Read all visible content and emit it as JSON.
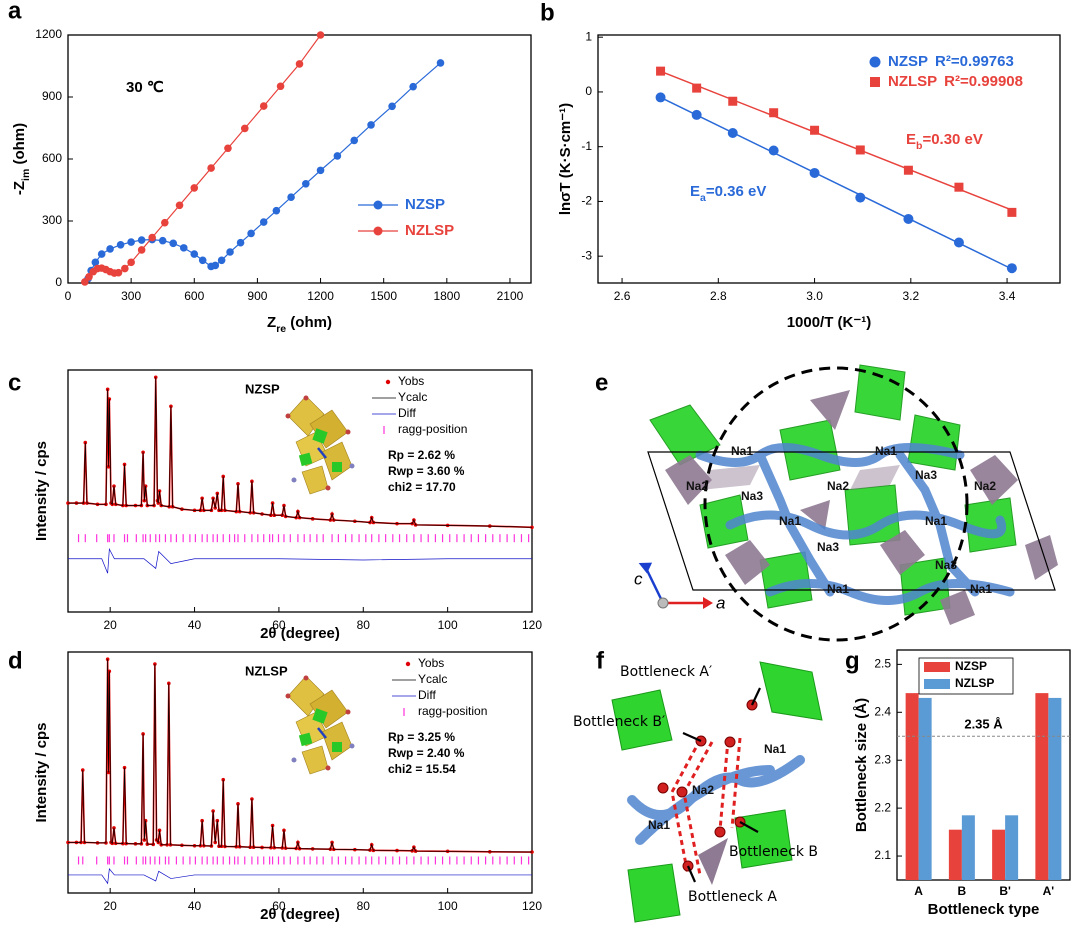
{
  "chart_data": [
    {
      "panel": "a",
      "type": "line",
      "xlabel_parts": [
        "Z",
        "re",
        " (ohm)"
      ],
      "ylabel_parts": [
        "-Z",
        "im",
        " (ohm)"
      ],
      "annotation": "30 ℃",
      "xlim": [
        0,
        2200
      ],
      "xticks": [
        0,
        300,
        600,
        900,
        1200,
        1500,
        1800,
        2100
      ],
      "ylim": [
        0,
        1200
      ],
      "yticks": [
        0,
        300,
        600,
        900,
        1200
      ],
      "series": [
        {
          "name": "NZSP",
          "color": "#2a6ad8",
          "x": [
            95,
            110,
            130,
            160,
            200,
            250,
            300,
            350,
            400,
            450,
            500,
            550,
            600,
            640,
            680,
            700,
            730,
            770,
            820,
            870,
            930,
            990,
            1060,
            1130,
            1200,
            1280,
            1360,
            1440,
            1540,
            1640,
            1770
          ],
          "values": [
            20,
            60,
            100,
            140,
            165,
            185,
            198,
            208,
            210,
            205,
            192,
            170,
            140,
            110,
            80,
            85,
            110,
            150,
            195,
            240,
            295,
            350,
            415,
            480,
            545,
            615,
            690,
            765,
            855,
            950,
            1065
          ]
        },
        {
          "name": "NZLSP",
          "color": "#e8423c",
          "x": [
            80,
            100,
            120,
            140,
            160,
            180,
            200,
            220,
            240,
            270,
            300,
            350,
            400,
            460,
            530,
            600,
            680,
            760,
            840,
            930,
            1010,
            1100,
            1200
          ],
          "values": [
            5,
            30,
            55,
            70,
            72,
            65,
            55,
            48,
            50,
            70,
            100,
            160,
            220,
            292,
            376,
            460,
            556,
            652,
            748,
            856,
            952,
            1060,
            1200
          ]
        }
      ]
    },
    {
      "panel": "b",
      "type": "scatter",
      "xlabel": "1000/T (K⁻¹)",
      "ylabel": "lnσT (K·S·cm⁻¹)",
      "xlim": [
        2.55,
        3.51
      ],
      "xticks": [
        2.6,
        2.8,
        {
          "value": 3,
          "label": "3.0"
        },
        3.2,
        3.4
      ],
      "ylim": [
        -3.49,
        1.04
      ],
      "yticks": [
        1,
        0,
        -1,
        -2,
        -3
      ],
      "annotations": [
        {
          "parts": [
            "E",
            "a",
            "=0.36 eV"
          ],
          "color": "#2a6ad8"
        },
        {
          "parts": [
            "E",
            "b",
            "=0.30 eV"
          ],
          "color": "#e8423c"
        }
      ],
      "series": [
        {
          "name": "NZSP",
          "r2_label": "R²=0.99763",
          "color": "#2a6ad8",
          "marker": "circle",
          "x": [
            2.68,
            2.755,
            2.83,
            2.915,
            3.0,
            3.095,
            3.195,
            3.3,
            3.41
          ],
          "values": [
            -0.1,
            -0.42,
            -0.75,
            -1.07,
            -1.48,
            -1.93,
            -2.32,
            -2.75,
            -3.22
          ]
        },
        {
          "name": "NZLSP",
          "r2_label": "R²=0.99908",
          "color": "#e8423c",
          "marker": "square",
          "x": [
            2.68,
            2.755,
            2.83,
            2.915,
            3.0,
            3.095,
            3.195,
            3.3,
            3.41
          ],
          "values": [
            0.38,
            0.07,
            -0.17,
            -0.38,
            -0.7,
            -1.06,
            -1.43,
            -1.74,
            -2.2
          ]
        }
      ]
    },
    {
      "panel": "c",
      "type": "xrd",
      "label": "NZSP",
      "xlabel": "2θ (degree)",
      "ylabel": "Intensity / cps",
      "stats": [
        "Rp = 2.62 %",
        "Rwp = 3.60 %",
        "chi2 = 17.70"
      ],
      "xlim": [
        10,
        120
      ],
      "xticks": [
        20,
        40,
        60,
        80,
        100,
        120
      ],
      "ylim": [
        0,
        100
      ],
      "x": [
        10,
        12,
        13.7,
        14.1,
        14.5,
        17,
        19,
        19.4,
        19.6,
        19.8,
        20.2,
        20.5,
        20.9,
        21.3,
        23,
        23.4,
        23.8,
        26,
        27.4,
        27.8,
        28.1,
        28.4,
        28.8,
        30.4,
        30.8,
        31.2,
        31.4,
        31.7,
        32.1,
        34,
        34.4,
        34.8,
        37,
        40,
        41.4,
        41.8,
        42.2,
        44,
        44.4,
        44.9,
        45.4,
        45.8,
        46.4,
        46.8,
        47.2,
        49.9,
        50.3,
        50.7,
        53.2,
        53.6,
        54,
        56,
        58.1,
        58.5,
        58.9,
        60.8,
        61.2,
        61.6,
        64.1,
        64.5,
        64.9,
        68,
        72.2,
        72.6,
        73,
        78,
        81.6,
        82,
        82.4,
        88,
        91.6,
        92,
        92.4,
        100,
        110,
        120
      ],
      "series": [
        {
          "name": "Yobs",
          "color": "#e00000",
          "marker": "dot",
          "values": [
            45,
            45,
            45,
            70,
            45,
            44.5,
            44.5,
            92,
            60,
            88,
            45,
            44.5,
            52,
            44.5,
            44,
            61,
            44,
            44,
            44,
            66,
            46,
            52,
            44,
            44,
            97,
            46,
            45,
            50,
            44,
            43.5,
            85,
            43.5,
            42.5,
            42,
            42,
            47,
            42,
            42,
            47,
            43,
            49,
            42,
            42,
            56,
            42,
            41.5,
            53,
            41.5,
            41,
            54,
            41,
            40.5,
            40,
            45,
            40,
            40,
            44,
            39.5,
            39,
            41.5,
            39,
            38.5,
            38,
            40.5,
            38,
            37.5,
            37,
            39,
            37,
            36.5,
            36.5,
            38,
            36,
            35.8,
            35.5,
            35
          ]
        },
        {
          "name": "Ycalc",
          "color": "#000000",
          "marker": "line",
          "values": [
            45,
            45,
            45,
            70,
            45,
            44.5,
            44.5,
            92,
            60,
            88,
            45,
            44.5,
            52,
            44.5,
            44,
            61,
            44,
            44,
            44,
            66,
            46,
            52,
            44,
            44,
            97,
            46,
            45,
            50,
            44,
            43.5,
            85,
            43.5,
            42.5,
            42,
            42,
            47,
            42,
            42,
            47,
            43,
            49,
            42,
            42,
            56,
            42,
            41.5,
            53,
            41.5,
            41,
            54,
            41,
            40.5,
            40,
            45,
            40,
            40,
            44,
            39.5,
            39,
            41.5,
            39,
            38.5,
            38,
            40.5,
            38,
            37.5,
            37,
            39,
            37,
            36.5,
            36.5,
            38,
            36,
            35.8,
            35.5,
            35
          ]
        },
        {
          "name": "Diff",
          "color": "#1010c8",
          "marker": "line",
          "x": [
            10,
            18,
            19.4,
            19.8,
            21,
            28,
            30.8,
            31.5,
            34.4,
            40,
            60,
            80,
            100,
            120
          ],
          "values": [
            22,
            22,
            16,
            26,
            22,
            22,
            18,
            25,
            20,
            22,
            22,
            21.5,
            22,
            22
          ]
        },
        {
          "name": "ragg-position",
          "color": "#ff33dd",
          "marker": "tick",
          "x": [
            12.5,
            14.1,
            16.8,
            19.4,
            19.8,
            20.9,
            23.4,
            24.1,
            26.2,
            27.8,
            28.4,
            29.5,
            30.8,
            31.7,
            33.1,
            34.4,
            35.7,
            37.3,
            38.9,
            40.2,
            41.8,
            43.0,
            44.4,
            45.4,
            46.8,
            48.3,
            49.5,
            50.3,
            51.9,
            53.6,
            55.0,
            56.4,
            57.8,
            58.5,
            59.9,
            61.2,
            62.7,
            64.5,
            66.0,
            67.4,
            69.0,
            70.5,
            72.6,
            74.1,
            75.8,
            77.3,
            79.0,
            80.6,
            82.0,
            83.7,
            85.3,
            87.0,
            88.6,
            90.3,
            92.0,
            93.7,
            95.4,
            97.1,
            98.8,
            100.5,
            102.2,
            103.9,
            105.6,
            107.3,
            109.0,
            110.7,
            112.4,
            114.1,
            115.8,
            117.5,
            119.2
          ]
        }
      ]
    },
    {
      "panel": "d",
      "type": "xrd",
      "label": "NZLSP",
      "xlabel": "2θ (degree)",
      "ylabel": "Intensity / cps",
      "stats": [
        "Rp = 3.25 %",
        "Rwp = 2.40 %",
        "chi2 = 15.54"
      ],
      "xlim": [
        10,
        120
      ],
      "xticks": [
        20,
        40,
        60,
        80,
        100,
        120
      ],
      "ylim": [
        0,
        100
      ],
      "x": [
        10,
        12,
        13.1,
        13.5,
        13.9,
        17,
        19,
        19.4,
        19.6,
        19.8,
        20.2,
        20.5,
        20.9,
        21.3,
        23,
        23.4,
        23.8,
        26,
        27.4,
        27.8,
        28.1,
        28.4,
        28.8,
        30.2,
        30.6,
        31.0,
        31.4,
        31.7,
        32.1,
        33.5,
        33.9,
        34.3,
        37,
        40,
        41.4,
        41.8,
        42.2,
        44,
        44.4,
        44.9,
        45.4,
        45.8,
        46.4,
        46.8,
        47.2,
        49.9,
        50.3,
        50.7,
        53.2,
        53.6,
        54,
        56,
        58.1,
        58.5,
        58.9,
        60.8,
        61.2,
        61.6,
        64.1,
        64.5,
        64.9,
        68,
        72.2,
        72.6,
        73,
        78,
        81.6,
        82,
        82.4,
        88,
        91.6,
        92,
        92.4,
        100,
        110,
        120
      ],
      "series": [
        {
          "name": "Yobs",
          "color": "#e00000",
          "marker": "dot",
          "values": [
            21,
            21,
            21,
            51,
            21,
            20.8,
            20.8,
            97,
            50,
            92,
            21,
            20.6,
            27,
            20.6,
            20.5,
            52,
            20.5,
            20.4,
            20.4,
            66,
            22,
            30,
            20.3,
            20.2,
            95,
            22,
            21,
            26,
            20,
            20,
            87,
            20,
            19.8,
            19.6,
            19.6,
            30,
            19.6,
            19.5,
            34,
            21,
            30,
            19.4,
            19.4,
            47,
            19.3,
            19.2,
            37,
            19.2,
            19,
            39,
            19,
            18.9,
            18.8,
            28,
            18.8,
            18.7,
            26,
            18.6,
            18.5,
            21,
            18.4,
            18.3,
            18.2,
            21,
            18.1,
            18,
            17.8,
            20,
            17.7,
            17.6,
            17.5,
            19,
            17.4,
            17.3,
            17.1,
            17
          ]
        },
        {
          "name": "Ycalc",
          "color": "#000000",
          "marker": "line",
          "values": [
            21,
            21,
            21,
            51,
            21,
            20.8,
            20.8,
            97,
            50,
            92,
            21,
            20.6,
            27,
            20.6,
            20.5,
            52,
            20.5,
            20.4,
            20.4,
            66,
            22,
            30,
            20.3,
            20.2,
            95,
            22,
            21,
            26,
            20,
            20,
            87,
            20,
            19.8,
            19.6,
            19.6,
            30,
            19.6,
            19.5,
            34,
            21,
            30,
            19.4,
            19.4,
            47,
            19.3,
            19.2,
            37,
            19.2,
            19,
            39,
            19,
            18.9,
            18.8,
            28,
            18.8,
            18.7,
            26,
            18.6,
            18.5,
            21,
            18.4,
            18.3,
            18.2,
            21,
            18.1,
            18,
            17.8,
            20,
            17.7,
            17.6,
            17.5,
            19,
            17.4,
            17.3,
            17.1,
            17
          ]
        },
        {
          "name": "Diff",
          "color": "#1010c8",
          "marker": "line",
          "x": [
            10,
            18,
            19.4,
            19.8,
            21,
            28,
            30.8,
            31.5,
            34.4,
            40,
            60,
            80,
            100,
            120
          ],
          "values": [
            7.5,
            7.5,
            4,
            10,
            7.5,
            7.5,
            5,
            9,
            6,
            7.5,
            7.5,
            7.5,
            7.5,
            7.5
          ]
        },
        {
          "name": "ragg-position",
          "color": "#ff33dd",
          "marker": "tick",
          "x": [
            12.5,
            13.5,
            16.8,
            19.4,
            19.8,
            20.9,
            23.4,
            24.1,
            26.2,
            27.8,
            28.4,
            29.5,
            30.6,
            31.7,
            33.1,
            33.9,
            35.7,
            37.3,
            38.9,
            40.2,
            41.8,
            43.0,
            44.4,
            45.4,
            46.8,
            48.3,
            49.5,
            50.3,
            51.9,
            53.6,
            55.0,
            56.4,
            57.8,
            58.5,
            59.9,
            61.2,
            62.7,
            64.5,
            66.0,
            67.4,
            69.0,
            70.5,
            72.6,
            74.1,
            75.8,
            77.3,
            79.0,
            80.6,
            82.0,
            83.7,
            85.3,
            87.0,
            88.6,
            90.3,
            92.0,
            93.7,
            95.4,
            97.1,
            98.8,
            100.5,
            102.2,
            103.9,
            105.6,
            107.3,
            109.0,
            110.7,
            112.4,
            114.1,
            115.8,
            117.5,
            119.2
          ]
        }
      ]
    },
    {
      "panel": "g",
      "type": "bar",
      "xlabel": "Bottleneck type",
      "ylabel": "Bottleneck size (Å)",
      "categories": [
        "A",
        "B",
        "B'",
        "A'"
      ],
      "ylim": [
        2.05,
        2.53
      ],
      "yticks": [
        2.1,
        2.2,
        2.3,
        2.4,
        2.5
      ],
      "reference": {
        "value": 2.35,
        "label": "2.35 Å"
      },
      "series": [
        {
          "name": "NZSP",
          "color": "#e8423c",
          "values": [
            2.44,
            2.155,
            2.155,
            2.44
          ]
        },
        {
          "name": "NZLSP",
          "color": "#5b9bd5",
          "values": [
            2.43,
            2.185,
            2.185,
            2.43
          ]
        }
      ]
    }
  ],
  "structure_e": {
    "panel": "e",
    "labels": [
      "Na1",
      "Na1",
      "Na2",
      "Na3",
      "Na2",
      "Na3",
      "Na2",
      "Na1",
      "Na1",
      "Na3",
      "Na3",
      "Na1",
      "Na1"
    ],
    "axes": [
      "c",
      "a"
    ]
  },
  "structure_f": {
    "panel": "f",
    "labels": [
      "Bottleneck A′",
      "Bottleneck B′",
      "Na1",
      "Na2",
      "Na1",
      "Bottleneck B",
      "Bottleneck A"
    ]
  }
}
